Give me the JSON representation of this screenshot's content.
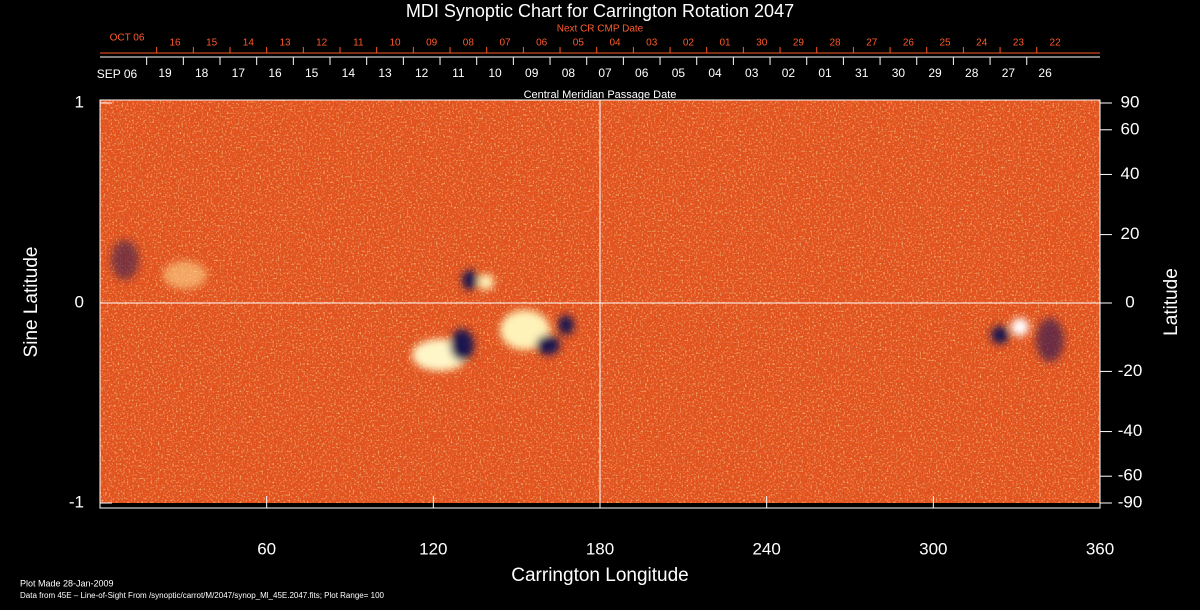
{
  "chart_data": {
    "type": "synoptic-map",
    "title": "MDI Synoptic Chart for Carrington Rotation 2047",
    "x_label": "Carrington Longitude",
    "y_label": "Sine Latitude",
    "y2_label": "Latitude",
    "xlim": [
      0,
      360
    ],
    "xticks": [
      60,
      120,
      180,
      240,
      300,
      360
    ],
    "ylim": [
      -1,
      1
    ],
    "yticks": [
      1,
      0,
      -1
    ],
    "y2lim": [
      -90,
      90
    ],
    "y2ticks": [
      90,
      60,
      40,
      20,
      0,
      -20,
      -40,
      -60,
      -90
    ],
    "y2scale": "sine",
    "grid_lines": {
      "x": [
        180
      ],
      "y": [
        0
      ]
    },
    "top_axis": {
      "label": "Central Meridian Passage Date",
      "start_label": "SEP 06",
      "color": "#ffffff",
      "categories": [
        "19",
        "18",
        "17",
        "16",
        "15",
        "14",
        "13",
        "12",
        "11",
        "10",
        "09",
        "08",
        "07",
        "06",
        "05",
        "04",
        "03",
        "02",
        "01",
        "31",
        "30",
        "29",
        "28",
        "27",
        "26"
      ]
    },
    "top_axis_2": {
      "label": "Next CR CMP Date",
      "start_label": "OCT 06",
      "color": "#ff5a2a",
      "categories": [
        "16",
        "15",
        "14",
        "13",
        "12",
        "11",
        "10",
        "09",
        "08",
        "07",
        "06",
        "05",
        "04",
        "03",
        "02",
        "01",
        "30",
        "29",
        "28",
        "27",
        "26",
        "25",
        "24",
        "23",
        "22"
      ]
    },
    "footer": [
      "Plot Made 28-Jan-2009",
      "Data from 45E – Line-of-Sight From /synoptic/carrot/M/2047/synop_Ml_45E.2047.fits; Plot Range=  100"
    ]
  }
}
